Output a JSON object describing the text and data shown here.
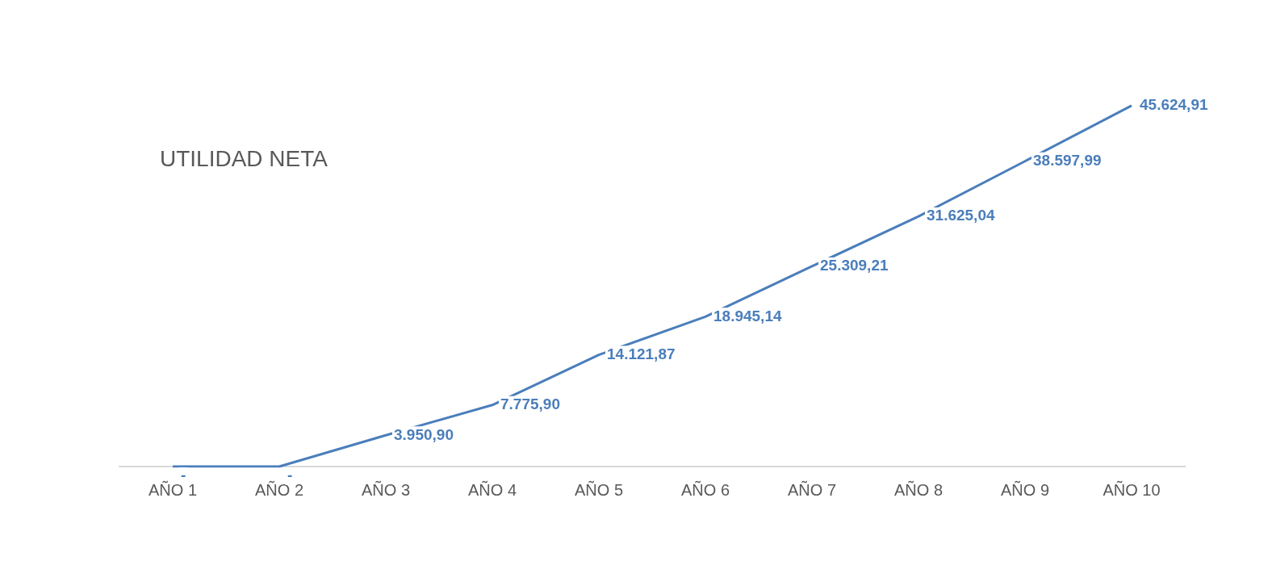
{
  "chart_data": {
    "type": "line",
    "title": "UTILIDAD NETA",
    "categories": [
      "AÑO 1",
      "AÑO 2",
      "AÑO 3",
      "AÑO 4",
      "AÑO 5",
      "AÑO 6",
      "AÑO 7",
      "AÑO 8",
      "AÑO 9",
      "AÑO 10"
    ],
    "series": [
      {
        "color": "#4a7ebb",
        "values": [
          0,
          0,
          3950.9,
          7775.9,
          14121.87,
          18945.14,
          25309.21,
          31625.04,
          38597.99,
          45624.91
        ],
        "value_labels": [
          "-",
          "-",
          "3.950,90",
          "7.775,90",
          "14.121,87",
          "18.945,14",
          "25.309,21",
          "31.625,04",
          "38.597,99",
          "45.624,91"
        ]
      }
    ],
    "marker": "none",
    "line_style": "solid",
    "grid": false,
    "legend": false,
    "tick_labels": "x"
  }
}
